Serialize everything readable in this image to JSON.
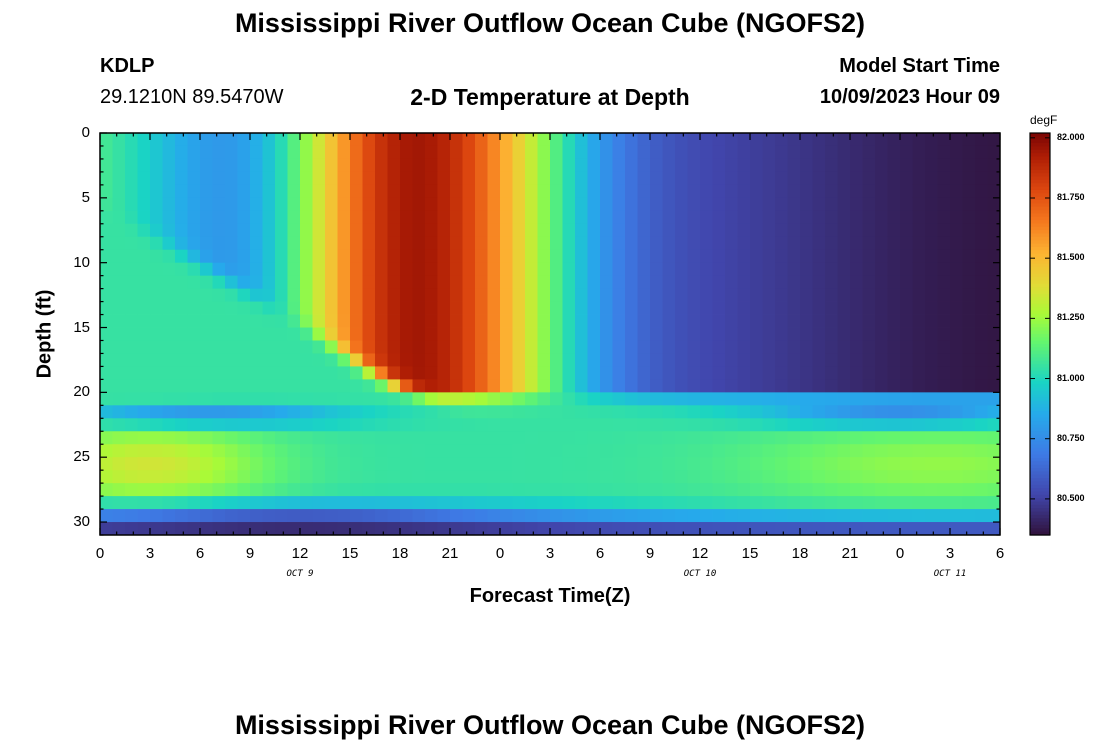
{
  "header": {
    "title": "Mississippi River Outflow Ocean Cube (NGOFS2)",
    "station": "KDLP",
    "coords": "29.1210N  89.5470W",
    "subtitle": "2-D Temperature at Depth",
    "start_label": "Model Start Time",
    "start_value": "10/09/2023 Hour 09"
  },
  "footer": {
    "title": "Mississippi River Outflow Ocean Cube (NGOFS2)"
  },
  "colorbar": {
    "unit": "degF",
    "ticks": [
      "82.000",
      "81.750",
      "81.500",
      "81.250",
      "81.000",
      "80.750",
      "80.500"
    ],
    "tick_values": [
      82.0,
      81.75,
      81.5,
      81.25,
      81.0,
      80.75,
      80.5
    ],
    "range": [
      80.35,
      82.02
    ]
  },
  "chart_data": {
    "type": "heatmap",
    "title": "2-D Temperature at Depth",
    "xlabel": "Forecast Time(Z)",
    "ylabel": "Depth (ft)",
    "x_tick_labels": [
      "0",
      "3",
      "6",
      "9",
      "12",
      "15",
      "18",
      "21",
      "0",
      "3",
      "6",
      "9",
      "12",
      "15",
      "18",
      "21",
      "0",
      "3",
      "6"
    ],
    "x_range_hours": [
      0,
      54
    ],
    "date_labels": [
      "OCT 9",
      "OCT 10",
      "OCT 11"
    ],
    "date_label_hours": [
      12,
      36,
      51
    ],
    "y_ticks": [
      0,
      5,
      10,
      15,
      20,
      25,
      30
    ],
    "y_range": [
      0,
      31
    ],
    "y_inverted": true,
    "value_unit": "degF",
    "value_range": [
      80.35,
      82.02
    ],
    "colormap": "turbo",
    "grid": false
  }
}
